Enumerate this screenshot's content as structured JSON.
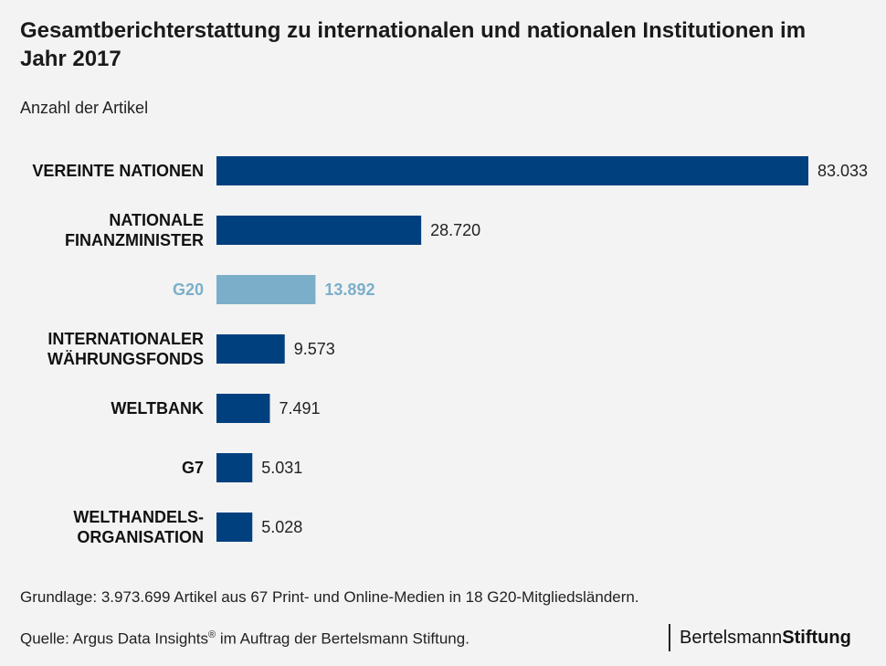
{
  "header": {
    "title": "Gesamtberichterstattung zu internationalen und nationalen Institutionen im Jahr 2017",
    "subtitle": "Anzahl der Artikel"
  },
  "footer": {
    "note": "Grundlage: 3.973.699 Artikel aus 67 Print- und Online-Medien in 18 G20-Mitgliedsländern.",
    "source_prefix": "Quelle: Argus Data Insights",
    "source_reg": "®",
    "source_suffix": " im Auftrag der Bertelsmann Stiftung.",
    "logo_regular": "Bertelsmann",
    "logo_bold": "Stiftung"
  },
  "colors": {
    "bar": "#00407f",
    "highlight_bar": "#7bafc9",
    "highlight_text": "#7bafc9",
    "text": "#111111"
  },
  "chart_data": {
    "type": "bar",
    "orientation": "horizontal",
    "title": "Gesamtberichterstattung zu internationalen und nationalen Institutionen im Jahr 2017",
    "subtitle": "Anzahl der Artikel",
    "categories": [
      [
        "VEREINTE NATIONEN"
      ],
      [
        "NATIONALE",
        "FINANZMINISTER"
      ],
      [
        "G20"
      ],
      [
        "INTERNATIONALER",
        "WÄHRUNGSFONDS"
      ],
      [
        "WELTBANK"
      ],
      [
        "G7"
      ],
      [
        "WELTHANDELS-",
        "ORGANISATION"
      ]
    ],
    "values": [
      83033,
      28720,
      13892,
      9573,
      7491,
      5031,
      5028
    ],
    "value_labels": [
      "83.033",
      "28.720",
      "13.892",
      "9.573",
      "7.491",
      "5.031",
      "5.028"
    ],
    "highlighted": [
      false,
      false,
      true,
      false,
      false,
      false,
      false
    ],
    "xlim": [
      0,
      83033
    ],
    "grid": false,
    "legend": "none"
  }
}
